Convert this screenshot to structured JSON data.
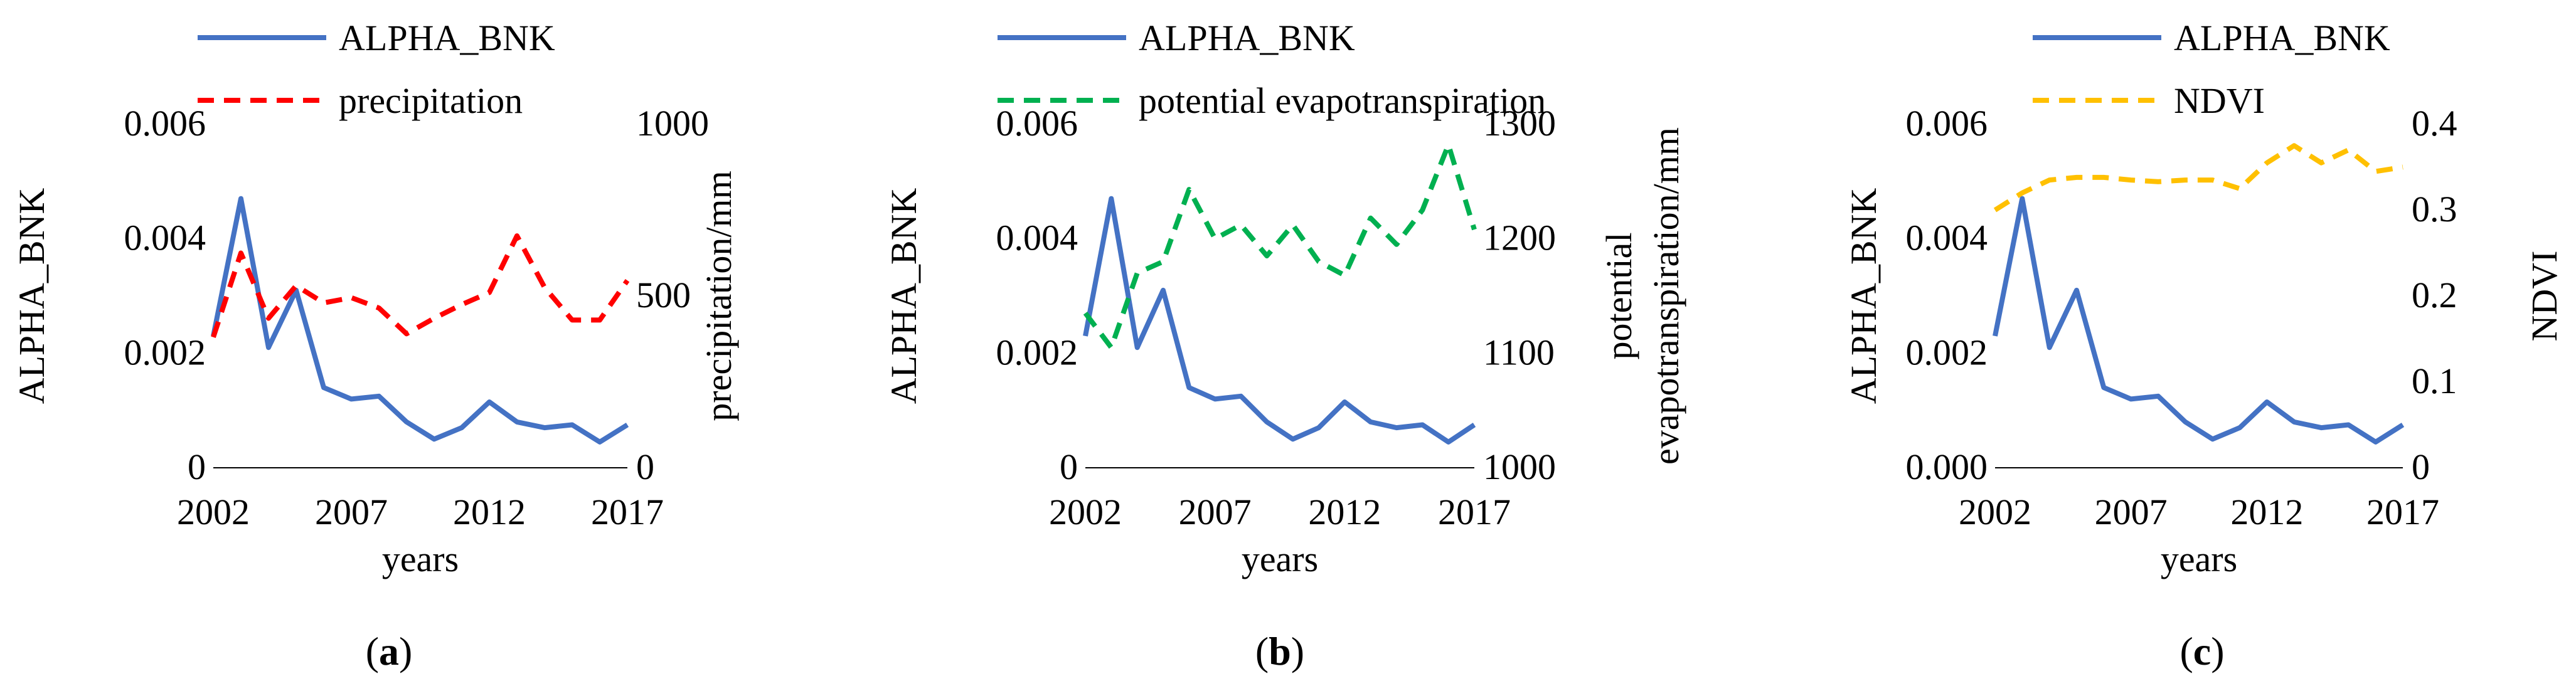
{
  "figure": {
    "panels": [
      {
        "caption_open": "(",
        "caption_letter": "a",
        "caption_close": ")"
      },
      {
        "caption_open": "(",
        "caption_letter": "b",
        "caption_close": ")"
      },
      {
        "caption_open": "(",
        "caption_letter": "c",
        "caption_close": ")"
      }
    ]
  },
  "chart_data": [
    {
      "type": "line",
      "xlabel": "years",
      "ylabel": "ALPHA_BNK",
      "y2label": [
        "precipitation/mm"
      ],
      "x": [
        2002,
        2003,
        2004,
        2005,
        2006,
        2007,
        2008,
        2009,
        2010,
        2011,
        2012,
        2013,
        2014,
        2015,
        2016,
        2017
      ],
      "xticks": [
        "2002",
        "2007",
        "2012",
        "2017"
      ],
      "xlim": [
        2002,
        2017
      ],
      "ylim": [
        0,
        0.006
      ],
      "yticks": [
        "0",
        "0.002",
        "0.004",
        "0.006"
      ],
      "y2lim": [
        0,
        1000
      ],
      "y2ticks": [
        "0",
        "500",
        "1000"
      ],
      "legend_position": "top",
      "series": [
        {
          "name": "ALPHA_BNK",
          "axis": "left",
          "color": "#4472C4",
          "dash": "solid",
          "values": [
            0.0023,
            0.0047,
            0.0021,
            0.0031,
            0.0014,
            0.0012,
            0.00125,
            0.0008,
            0.0005,
            0.0007,
            0.00115,
            0.0008,
            0.0007,
            0.00075,
            0.00045,
            0.00075
          ]
        },
        {
          "name": "precipitation",
          "axis": "right",
          "color": "#FF0000",
          "dash": "dashed",
          "values": [
            380,
            625,
            435,
            530,
            480,
            495,
            465,
            390,
            435,
            475,
            510,
            675,
            525,
            430,
            430,
            545
          ]
        }
      ]
    },
    {
      "type": "line",
      "xlabel": "years",
      "ylabel": "ALPHA_BNK",
      "y2label": [
        "potential",
        "evapotranspiration/mm"
      ],
      "x": [
        2002,
        2003,
        2004,
        2005,
        2006,
        2007,
        2008,
        2009,
        2010,
        2011,
        2012,
        2013,
        2014,
        2015,
        2016,
        2017
      ],
      "xticks": [
        "2002",
        "2007",
        "2012",
        "2017"
      ],
      "xlim": [
        2002,
        2017
      ],
      "ylim": [
        0,
        0.006
      ],
      "yticks": [
        "0",
        "0.002",
        "0.004",
        "0.006"
      ],
      "y2lim": [
        1000,
        1300
      ],
      "y2ticks": [
        "1000",
        "1100",
        "1200",
        "1300"
      ],
      "legend_position": "top",
      "series": [
        {
          "name": "ALPHA_BNK",
          "axis": "left",
          "color": "#4472C4",
          "dash": "solid",
          "values": [
            0.0023,
            0.0047,
            0.0021,
            0.0031,
            0.0014,
            0.0012,
            0.00125,
            0.0008,
            0.0005,
            0.0007,
            0.00115,
            0.0008,
            0.0007,
            0.00075,
            0.00045,
            0.00075
          ]
        },
        {
          "name": "potential evapotranspiration",
          "axis": "right",
          "color": "#00B050",
          "dash": "dashed",
          "values": [
            1135,
            1105,
            1170,
            1180,
            1243,
            1200,
            1212,
            1185,
            1212,
            1180,
            1168,
            1218,
            1195,
            1225,
            1282,
            1208
          ]
        }
      ]
    },
    {
      "type": "line",
      "xlabel": "years",
      "ylabel": "ALPHA_BNK",
      "y2label": [
        "NDVI"
      ],
      "x": [
        2002,
        2003,
        2004,
        2005,
        2006,
        2007,
        2008,
        2009,
        2010,
        2011,
        2012,
        2013,
        2014,
        2015,
        2016,
        2017
      ],
      "xticks": [
        "2002",
        "2007",
        "2012",
        "2017"
      ],
      "xlim": [
        2002,
        2017
      ],
      "ylim": [
        0,
        0.006
      ],
      "yticks": [
        "0.000",
        "0.002",
        "0.004",
        "0.006"
      ],
      "y2lim": [
        0,
        0.4
      ],
      "y2ticks": [
        "0",
        "0.1",
        "0.2",
        "0.3",
        "0.4"
      ],
      "legend_position": "top",
      "series": [
        {
          "name": "ALPHA_BNK",
          "axis": "left",
          "color": "#4472C4",
          "dash": "solid",
          "values": [
            0.0023,
            0.0047,
            0.0021,
            0.0031,
            0.0014,
            0.0012,
            0.00125,
            0.0008,
            0.0005,
            0.0007,
            0.00115,
            0.0008,
            0.0007,
            0.00075,
            0.00045,
            0.00075
          ]
        },
        {
          "name": "NDVI",
          "axis": "right",
          "color": "#FFC000",
          "dash": "dashed",
          "values": [
            0.3,
            0.32,
            0.335,
            0.338,
            0.338,
            0.335,
            0.333,
            0.335,
            0.335,
            0.325,
            0.355,
            0.375,
            0.355,
            0.37,
            0.345,
            0.35
          ]
        }
      ]
    }
  ]
}
